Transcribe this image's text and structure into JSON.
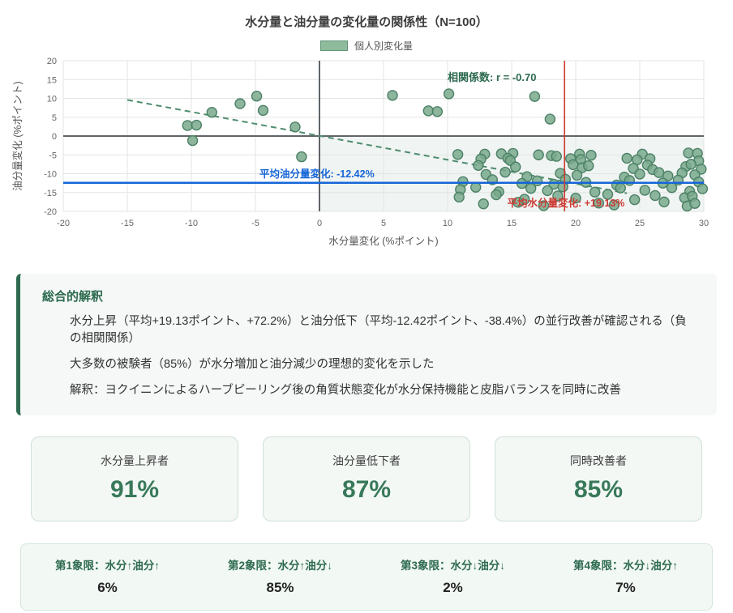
{
  "colors": {
    "accent_green": "#2d6a4f",
    "point_fill": "#79a98c",
    "point_stroke": "#4c8166",
    "trend_green": "#4e8d6e",
    "mean_oil_blue": "#1565d8",
    "mean_water_red": "#cc3b33",
    "quadrant_fill": "rgba(45,106,79,0.07)",
    "grid": "#e2e6e3",
    "zero_axis": "#606468"
  },
  "chart_data": {
    "type": "scatter",
    "title": "水分量と油分量の変化量の関係性（N=100）",
    "legend_label": "個人別変化量",
    "xlabel": "水分量変化 (%ポイント)",
    "ylabel": "油分量変化 (%ポイント)",
    "xlim": [
      -20,
      30
    ],
    "ylim": [
      -20,
      20
    ],
    "xticks": [
      -20,
      -15,
      -10,
      -5,
      0,
      5,
      10,
      15,
      20,
      25,
      30
    ],
    "yticks": [
      -20,
      -15,
      -10,
      -5,
      0,
      5,
      10,
      15,
      20
    ],
    "grid": true,
    "legend_position": "top",
    "correlation_label": "相関係数: r = -0.70",
    "correlation_r": -0.7,
    "mean_oil_line": {
      "value": -12.42,
      "label": "平均油分量変化: -12.42%"
    },
    "mean_water_line": {
      "value": 19.13,
      "label": "平均水分量変化: +19.13%"
    },
    "trendline": {
      "x1": -15,
      "y1": 9.6,
      "x2": 24,
      "y2": -15.2
    },
    "shaded_quadrant": {
      "x": [
        0,
        30
      ],
      "y": [
        -20,
        0
      ]
    },
    "points": [
      [
        -10.3,
        2.8
      ],
      [
        -9.6,
        2.9
      ],
      [
        -9.9,
        -1.2
      ],
      [
        -8.4,
        6.3
      ],
      [
        -6.2,
        8.6
      ],
      [
        -4.9,
        10.6
      ],
      [
        -4.4,
        6.8
      ],
      [
        -1.9,
        2.4
      ],
      [
        -1.4,
        -5.5
      ],
      [
        5.7,
        10.8
      ],
      [
        8.5,
        6.7
      ],
      [
        9.2,
        6.5
      ],
      [
        10.1,
        11.2
      ],
      [
        16.8,
        10.5
      ],
      [
        18.0,
        4.5
      ],
      [
        10.8,
        -4.9
      ],
      [
        12.9,
        -4.8
      ],
      [
        14.2,
        -4.7
      ],
      [
        15.1,
        -4.6
      ],
      [
        17.1,
        -5.0
      ],
      [
        18.1,
        -5.2
      ],
      [
        18.5,
        -5.4
      ],
      [
        20.3,
        -4.8
      ],
      [
        21.2,
        -5.1
      ],
      [
        25.2,
        -4.8
      ],
      [
        28.8,
        -4.5
      ],
      [
        29.5,
        -4.6
      ],
      [
        12.6,
        -6.1
      ],
      [
        14.7,
        -5.9
      ],
      [
        14.9,
        -6.5
      ],
      [
        19.6,
        -6.0
      ],
      [
        20.4,
        -6.2
      ],
      [
        24.0,
        -5.9
      ],
      [
        24.8,
        -6.3
      ],
      [
        25.8,
        -6.0
      ],
      [
        29.6,
        -6.6
      ],
      [
        12.4,
        -7.8
      ],
      [
        15.3,
        -8.2
      ],
      [
        19.8,
        -7.6
      ],
      [
        20.5,
        -8.4
      ],
      [
        21.0,
        -7.9
      ],
      [
        24.5,
        -8.6
      ],
      [
        25.6,
        -7.7
      ],
      [
        26.0,
        -8.9
      ],
      [
        28.6,
        -8.1
      ],
      [
        29.0,
        -7.5
      ],
      [
        29.8,
        -8.8
      ],
      [
        13.0,
        -10.2
      ],
      [
        14.5,
        -9.6
      ],
      [
        16.2,
        -10.8
      ],
      [
        18.8,
        -9.9
      ],
      [
        20.1,
        -10.4
      ],
      [
        23.8,
        -10.9
      ],
      [
        25.0,
        -10.1
      ],
      [
        26.5,
        -9.7
      ],
      [
        27.2,
        -10.6
      ],
      [
        28.3,
        -9.8
      ],
      [
        29.3,
        -10.3
      ],
      [
        11.2,
        -12.1
      ],
      [
        13.5,
        -11.6
      ],
      [
        15.8,
        -12.6
      ],
      [
        17.0,
        -11.9
      ],
      [
        18.3,
        -12.8
      ],
      [
        19.2,
        -11.5
      ],
      [
        20.8,
        -12.3
      ],
      [
        23.2,
        -13.0
      ],
      [
        24.2,
        -11.8
      ],
      [
        26.8,
        -12.5
      ],
      [
        28.0,
        -11.7
      ],
      [
        29.6,
        -12.2
      ],
      [
        11.0,
        -14.2
      ],
      [
        12.2,
        -13.6
      ],
      [
        14.0,
        -14.8
      ],
      [
        16.5,
        -13.9
      ],
      [
        17.8,
        -14.5
      ],
      [
        19.0,
        -13.5
      ],
      [
        21.5,
        -14.9
      ],
      [
        23.5,
        -13.8
      ],
      [
        25.4,
        -14.4
      ],
      [
        27.5,
        -13.7
      ],
      [
        28.9,
        -14.7
      ],
      [
        29.9,
        -14.0
      ],
      [
        10.9,
        -16.2
      ],
      [
        13.8,
        -15.6
      ],
      [
        16.0,
        -16.8
      ],
      [
        18.6,
        -15.9
      ],
      [
        20.0,
        -16.5
      ],
      [
        22.5,
        -15.5
      ],
      [
        24.6,
        -16.9
      ],
      [
        26.2,
        -15.8
      ],
      [
        28.5,
        -16.4
      ],
      [
        29.1,
        -16.0
      ],
      [
        12.8,
        -18.0
      ],
      [
        15.5,
        -17.6
      ],
      [
        17.5,
        -18.5
      ],
      [
        21.8,
        -17.8
      ],
      [
        23.0,
        -18.3
      ],
      [
        26.9,
        -17.5
      ],
      [
        28.7,
        -18.6
      ],
      [
        29.3,
        -17.9
      ]
    ]
  },
  "interpretation": {
    "title": "総合的解釈",
    "lines": [
      "水分上昇（平均+19.13ポイント、+72.2%）と油分低下（平均-12.42ポイント、-38.4%）の並行改善が確認される（負の相関関係）",
      "大多数の被験者（85%）が水分増加と油分減少の理想的変化を示した",
      "解釈：ヨクイニンによるハーブピーリング後の角質状態変化が水分保持機能と皮脂バランスを同時に改善"
    ]
  },
  "stats": [
    {
      "label": "水分量上昇者",
      "value": "91%"
    },
    {
      "label": "油分量低下者",
      "value": "87%"
    },
    {
      "label": "同時改善者",
      "value": "85%"
    }
  ],
  "quadrants": [
    {
      "label": "第1象限：水分↑油分↑",
      "value": "6%"
    },
    {
      "label": "第2象限：水分↑油分↓",
      "value": "85%"
    },
    {
      "label": "第3象限：水分↓油分↓",
      "value": "2%"
    },
    {
      "label": "第4象限：水分↓油分↑",
      "value": "7%"
    }
  ]
}
